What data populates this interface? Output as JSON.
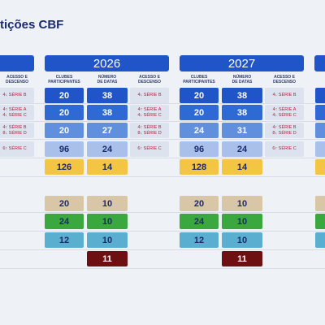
{
  "title": "tições CBF",
  "left_partial": {
    "access": [
      [
        "4↓ SÉRIE B"
      ],
      [
        "4↑ SÉRIE A",
        "4↓ SÉRIE C"
      ],
      [
        "4↑ SÉRIE B",
        "8↓ SÉRIE D"
      ],
      [
        "6↑ SÉRIE C"
      ]
    ]
  },
  "years": [
    {
      "year": "2026",
      "headers": [
        [
          "CLUBES",
          "PARTICIPANTES"
        ],
        [
          "NÚMERO",
          "DE DATAS"
        ],
        [
          "ACESSO E",
          "DESCENSO"
        ]
      ],
      "rows": [
        {
          "clubs": 20,
          "dates": 38,
          "access": [
            "4↓ SÉRIE B"
          ]
        },
        {
          "clubs": 20,
          "dates": 38,
          "access": [
            "4↑ SÉRIE A",
            "4↓ SÉRIE C"
          ]
        },
        {
          "clubs": 20,
          "dates": 27,
          "access": [
            "4↑ SÉRIE B",
            "8↓ SÉRIE D"
          ]
        },
        {
          "clubs": 96,
          "dates": 24,
          "access": [
            "6↑ SÉRIE C"
          ]
        },
        {
          "clubs": 126,
          "dates": 14,
          "access": null
        },
        {
          "clubs": 20,
          "dates": 10,
          "access": null
        },
        {
          "clubs": 24,
          "dates": 10,
          "access": null
        },
        {
          "clubs": 12,
          "dates": 10,
          "access": null
        },
        {
          "clubs": null,
          "dates": 11,
          "access": null
        }
      ]
    },
    {
      "year": "2027",
      "headers": [
        [
          "CLUBES",
          "PARTICIPANTES"
        ],
        [
          "NÚMERO",
          "DE DATAS"
        ],
        [
          "ACESSO E",
          "DESCENSO"
        ]
      ],
      "rows": [
        {
          "clubs": 20,
          "dates": 38,
          "access": [
            "4↓ SÉRIE B"
          ]
        },
        {
          "clubs": 20,
          "dates": 38,
          "access": [
            "4↑ SÉRIE A",
            "4↓ SÉRIE C"
          ]
        },
        {
          "clubs": 24,
          "dates": 31,
          "access": [
            "4↑ SÉRIE B",
            "8↓ SÉRIE D"
          ]
        },
        {
          "clubs": 96,
          "dates": 24,
          "access": [
            "6↑ SÉRIE C"
          ]
        },
        {
          "clubs": 128,
          "dates": 14,
          "access": null
        },
        {
          "clubs": 20,
          "dates": 10,
          "access": null
        },
        {
          "clubs": 24,
          "dates": 10,
          "access": null
        },
        {
          "clubs": 12,
          "dates": 10,
          "access": null
        },
        {
          "clubs": null,
          "dates": 11,
          "access": null
        }
      ]
    }
  ]
}
